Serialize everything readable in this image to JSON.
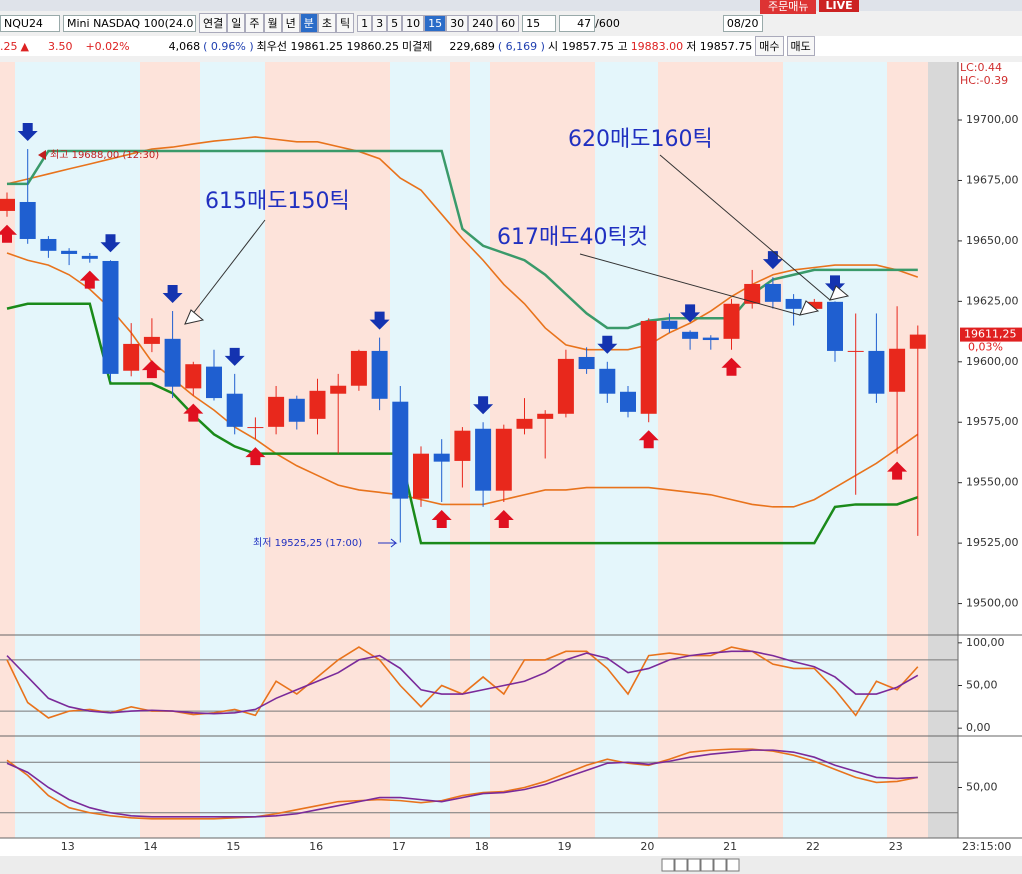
{
  "top_strip": {
    "live": "LIVE",
    "order": "주문매뉴"
  },
  "toolbar": {
    "symbol": "NQU24",
    "name": "Mini NASDAQ 100(24.0",
    "periods": [
      "연결",
      "일",
      "주",
      "월",
      "년",
      "분",
      "초",
      "틱"
    ],
    "intervals": [
      "1",
      "3",
      "5",
      "10",
      "15",
      "30",
      "240",
      "60"
    ],
    "interval": "15",
    "count": "47",
    "max": "/600",
    "date": "08/20"
  },
  "info_bar": {
    "price_tail": ".25",
    "up_mark": "▲",
    "change": "3.50",
    "change_pct": "+0.02%",
    "volume": "4,068",
    "volume_pct": "( 0.96% )",
    "best_quote": "최우선 19861.25  19860.25",
    "oi_label": "미결제",
    "oi": "229,689",
    "oi_change": "( 6,169 )",
    "open_high": "시 19857.75 고",
    "high": "19883.00",
    "low": "저 19857.75",
    "buy": "매수",
    "sell": "매도"
  },
  "side_info": [
    "LC:0.44",
    "HC:-0.39"
  ],
  "clock": "23:15:00",
  "chart_data": [
    {
      "type": "candlestick",
      "up_color": "#e8281c",
      "down_color": "#1f5fd0",
      "categories": [
        null,
        null,
        null,
        "13",
        null,
        null,
        null,
        "14",
        null,
        null,
        null,
        "15",
        null,
        null,
        null,
        "16",
        null,
        null,
        null,
        "17",
        null,
        null,
        null,
        "18",
        null,
        null,
        null,
        "19",
        null,
        null,
        null,
        "20",
        null,
        null,
        null,
        "21",
        null,
        null,
        null,
        "22",
        null,
        null,
        null,
        "23",
        null
      ],
      "open": [
        19662.4,
        19666.1,
        19650.8,
        19645.9,
        19643.8,
        19641.7,
        19596.3,
        19607.4,
        19609.5,
        19589,
        19598,
        19586.8,
        19573,
        19573.1,
        19584.7,
        19576.4,
        19586.8,
        19590.1,
        19604.5,
        19583.5,
        19543.4,
        19562,
        19559,
        19572.3,
        19546.7,
        19572.3,
        19576.4,
        19578.5,
        19602,
        19597.1,
        19587.6,
        19578.5,
        19617,
        19612.4,
        19610,
        19609.5,
        19624,
        19632.2,
        19626,
        19621.9,
        19624.8,
        19604.5,
        19604.5,
        19587.6,
        19605.4
      ],
      "high": [
        19670,
        19688,
        19652,
        19647,
        19645,
        19642,
        19616,
        19618,
        19621,
        19600,
        19605,
        19595,
        19577,
        19590,
        19586,
        19593,
        19595,
        19605,
        19610,
        19590,
        19565,
        19568,
        19573,
        19575,
        19574,
        19585,
        19580,
        19605,
        19606,
        19600,
        19590,
        19618,
        19620,
        19613,
        19611,
        19626,
        19638,
        19635,
        19628,
        19626,
        19625,
        19620,
        19620,
        19623,
        19615
      ],
      "low": [
        19660,
        19648.8,
        19643,
        19640,
        19641,
        19592,
        19594,
        19604,
        19585,
        19586,
        19584,
        19570,
        19568,
        19570,
        19572,
        19570,
        19562,
        19588,
        19580,
        19525.25,
        19540,
        19542,
        19548,
        19540,
        19542,
        19570,
        19560,
        19577,
        19595,
        19583,
        19577,
        19575,
        19612,
        19605,
        19605,
        19605,
        19622,
        19622,
        19615,
        19621,
        19600,
        19545,
        19583,
        19562,
        19528
      ],
      "close": [
        19667.4,
        19650.8,
        19645.9,
        19644.6,
        19642.6,
        19595,
        19607.4,
        19610.3,
        19589.7,
        19599,
        19585,
        19573.1,
        19573,
        19585.5,
        19575.2,
        19588,
        19590.1,
        19604.5,
        19584.7,
        19543.4,
        19562,
        19558.7,
        19571.5,
        19546.7,
        19572.3,
        19576.4,
        19578.5,
        19601.2,
        19597,
        19586.8,
        19579.3,
        19616.9,
        19613.6,
        19609.5,
        19609,
        19624,
        19632.2,
        19624.8,
        19621.9,
        19624.8,
        19604.5,
        19604.5,
        19586.8,
        19605.4,
        19611.25
      ],
      "series": [
        {
          "color": "#e8731c",
          "values": [
            19673.6,
            19675.6,
            19677.7,
            19679.8,
            19681.8,
            19683.9,
            19686,
            19688,
            19688.8,
            19690.1,
            19691.3,
            19692.1,
            19693,
            19692,
            19691,
            19691,
            19689,
            19687,
            19684,
            19676,
            19671,
            19661,
            19651,
            19642,
            19632,
            19624,
            19614,
            19607,
            19605,
            19605,
            19605,
            19607,
            19612,
            19616,
            19621,
            19627,
            19632,
            19636,
            19638,
            19639,
            19640,
            19640,
            19640,
            19638,
            19635
          ]
        },
        {
          "color": "#e8731c",
          "values": [
            19645,
            19642,
            19640,
            19636,
            19630,
            19622,
            19612,
            19600,
            19593,
            19586,
            19580,
            19573,
            19568,
            19562,
            19557,
            19553,
            19549,
            19547,
            19546,
            19545,
            19543,
            19541,
            19541,
            19541,
            19543,
            19545,
            19547,
            19547,
            19548,
            19548,
            19548,
            19548,
            19547,
            19546,
            19545,
            19543,
            19541,
            19540,
            19540,
            19543,
            19548,
            19553,
            19558,
            19564,
            19570
          ]
        },
        {
          "color": "#3a9a6a",
          "values": [
            19673.6,
            19673.6,
            19687.2,
            19687.2,
            19687.2,
            19687.2,
            19687.2,
            19687.2,
            19687.2,
            19687.2,
            19687.2,
            19687.2,
            19687.2,
            19687.2,
            19687.2,
            19687.2,
            19687.2,
            19687.2,
            19687.2,
            19687.2,
            19687.2,
            19687.2,
            19655,
            19648,
            19645,
            19642,
            19636,
            19628,
            19620,
            19614,
            19614,
            19617,
            19618,
            19618,
            19618,
            19618,
            19628,
            19634,
            19636,
            19638,
            19638,
            19638,
            19638,
            19638,
            19638
          ]
        },
        {
          "color": "#1a8a1a",
          "values": [
            19622,
            19624,
            19624,
            19624,
            19624,
            19591,
            19591,
            19591,
            19587,
            19578,
            19570,
            19565,
            19562,
            19562,
            19562,
            19562,
            19562,
            19562,
            19562,
            19562,
            19525,
            19525,
            19525,
            19525,
            19525,
            19525,
            19525,
            19525,
            19525,
            19525,
            19525,
            19525,
            19525,
            19525,
            19525,
            19525,
            19525,
            19525,
            19525,
            19525,
            19540,
            19541,
            19541,
            19541,
            19544
          ]
        }
      ],
      "ylim": [
        19487,
        19724
      ],
      "yticks": [
        {
          "value": 19700,
          "label": "19700,00"
        },
        {
          "value": 19675,
          "label": "19675,00"
        },
        {
          "value": 19650,
          "label": "19650,00"
        },
        {
          "value": 19625,
          "label": "19625,00"
        },
        {
          "value": 19600,
          "label": "19600,00"
        },
        {
          "value": 19575,
          "label": "19575,00"
        },
        {
          "value": 19550,
          "label": "19550,00"
        },
        {
          "value": 19525,
          "label": "19525,00"
        },
        {
          "value": 19500,
          "label": "19500,00"
        }
      ],
      "last_label": "19611,25",
      "last_change": "0,03%",
      "annotations": [
        "615매도150틱",
        "617매도40틱컷",
        "620매도160틱",
        "최고 19688,00 (12:30)",
        "최저 19525,25 (17:00)"
      ]
    },
    {
      "type": "line",
      "ylim": [
        -8,
        108
      ],
      "yticks": [
        {
          "value": 100,
          "label": "100,00"
        },
        {
          "value": 50,
          "label": "50,00"
        },
        {
          "value": 0,
          "label": "0,00"
        }
      ],
      "hlines": [
        80,
        20
      ],
      "series": [
        {
          "color": "#e8731c",
          "values": [
            80,
            30,
            12,
            20,
            22,
            18,
            25,
            20,
            20,
            16,
            18,
            22,
            15,
            55,
            40,
            60,
            80,
            95,
            80,
            50,
            25,
            50,
            40,
            60,
            40,
            80,
            80,
            90,
            90,
            70,
            40,
            85,
            88,
            85,
            85,
            95,
            90,
            75,
            70,
            70,
            45,
            15,
            55,
            45,
            72
          ]
        },
        {
          "color": "#7a2a9a",
          "values": [
            85,
            60,
            35,
            25,
            20,
            18,
            20,
            21,
            20,
            18,
            17,
            18,
            22,
            35,
            45,
            55,
            65,
            80,
            85,
            70,
            45,
            40,
            40,
            45,
            50,
            55,
            65,
            80,
            88,
            82,
            65,
            70,
            80,
            85,
            88,
            90,
            90,
            85,
            78,
            72,
            60,
            40,
            40,
            48,
            62
          ]
        }
      ]
    },
    {
      "type": "line",
      "ylim": [
        0,
        100
      ],
      "yticks": [
        {
          "value": 50,
          "label": "50,00"
        }
      ],
      "hlines": [
        75,
        25
      ],
      "series": [
        {
          "color": "#e8731c",
          "values": [
            77,
            62,
            42,
            30,
            25,
            22,
            20,
            19,
            19,
            19,
            19,
            20,
            21,
            24,
            28,
            32,
            36,
            37,
            38,
            37,
            35,
            37,
            42,
            45,
            46,
            50,
            56,
            64,
            72,
            78,
            74,
            72,
            78,
            85,
            87,
            88,
            88,
            86,
            82,
            76,
            68,
            60,
            55,
            56,
            60
          ]
        },
        {
          "color": "#7a2a9a",
          "values": [
            74,
            65,
            50,
            38,
            30,
            25,
            22,
            21,
            21,
            21,
            21,
            21,
            21,
            22,
            24,
            28,
            32,
            36,
            40,
            40,
            38,
            36,
            40,
            44,
            45,
            48,
            53,
            60,
            67,
            74,
            75,
            73,
            76,
            80,
            83,
            85,
            87,
            87,
            85,
            80,
            72,
            66,
            60,
            59,
            60
          ]
        }
      ]
    }
  ]
}
